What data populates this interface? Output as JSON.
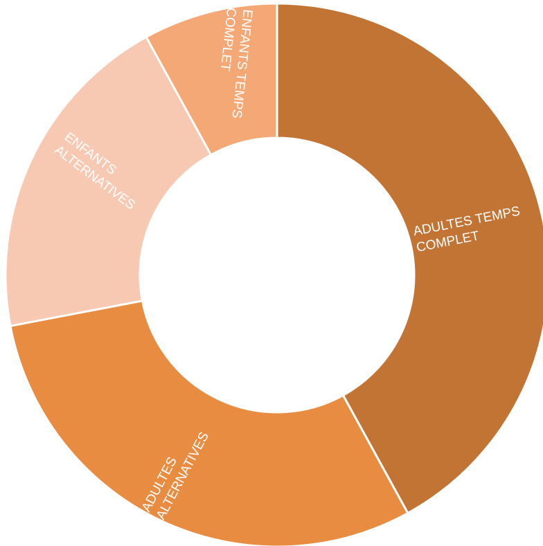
{
  "chart_data": {
    "type": "pie",
    "donut": true,
    "legend": "none",
    "categories": [
      "ADULTES TEMPS COMPLET",
      "ADULTES ALTERNATIVES",
      "ENFANTS ALTERNATIVES",
      "ENFANTS TEMPS COMPLET"
    ],
    "values": [
      42,
      30,
      20,
      8
    ],
    "colors": [
      "#c27435",
      "#e88c42",
      "#f8c9b2",
      "#f4a876"
    ],
    "label_lines": [
      [
        "ADULTES TEMPS",
        "COMPLET"
      ],
      [
        "ADULTES",
        "ALTERNATIVES"
      ],
      [
        "ENFANTS",
        "ALTERNATIVES"
      ],
      [
        "ENFANTS TEMPS",
        "COMPLET"
      ]
    ]
  }
}
